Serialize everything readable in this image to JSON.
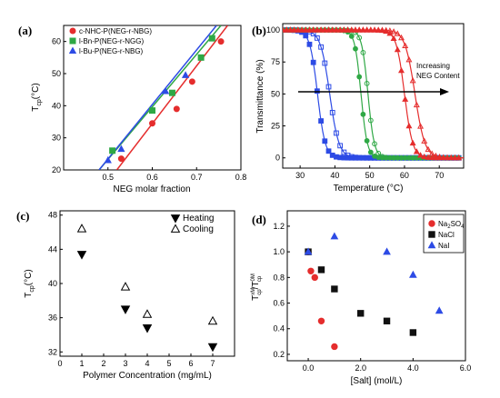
{
  "chart_data": [
    {
      "id": "a",
      "panel_label": "(a)",
      "type": "scatter",
      "xlabel": "NEG molar fraction",
      "ylabel": "T",
      "ylabel_sub": "cp",
      "ylabel_unit": "(°C)",
      "xlim": [
        0.4,
        0.8
      ],
      "ylim": [
        20,
        65
      ],
      "xticks": [
        "0.5",
        "0.6",
        "0.7",
        "0.8"
      ],
      "xtick_values": [
        0.5,
        0.6,
        0.7,
        0.8
      ],
      "yticks": [
        "20",
        "30",
        "40",
        "50",
        "60"
      ],
      "ytick_values": [
        20,
        30,
        40,
        50,
        60
      ],
      "legend_position": "top-left",
      "series": [
        {
          "name": "c-NHC-P(NEG-r-NBG)",
          "color": "#e52d2d",
          "marker": "circle",
          "x": [
            0.53,
            0.6,
            0.655,
            0.69,
            0.755
          ],
          "y": [
            23.5,
            34.5,
            39,
            47.5,
            60
          ],
          "fit": [
            [
              0.52,
              20
            ],
            [
              0.77,
              65
            ]
          ]
        },
        {
          "name": "l-Bn-P(NEG-r-NGG)",
          "color": "#2fa845",
          "marker": "square",
          "x": [
            0.51,
            0.6,
            0.645,
            0.71,
            0.735
          ],
          "y": [
            26,
            38.5,
            44,
            55,
            61
          ],
          "fit": [
            [
              0.48,
              20
            ],
            [
              0.755,
              65
            ]
          ]
        },
        {
          "name": "l-Bu-P(NEG-r-NBG)",
          "color": "#2d4be5",
          "marker": "triangle",
          "x": [
            0.5,
            0.53,
            0.63,
            0.675
          ],
          "y": [
            23,
            26.5,
            44.5,
            49.5
          ],
          "fit": [
            [
              0.48,
              20
            ],
            [
              0.745,
              65
            ]
          ]
        }
      ]
    },
    {
      "id": "b",
      "panel_label": "(b)",
      "type": "line",
      "xlabel": "Temperature (",
      "xlabel_unit": "°C)",
      "ylabel": "Transmittance (%)",
      "xlim": [
        25,
        77
      ],
      "ylim": [
        -8,
        105
      ],
      "xticks": [
        "30",
        "40",
        "50",
        "60",
        "70"
      ],
      "xtick_values": [
        30,
        40,
        50,
        60,
        70
      ],
      "yticks": [
        "0",
        "25",
        "50",
        "75",
        "100"
      ],
      "ytick_values": [
        0,
        25,
        50,
        75,
        100
      ],
      "annotation": [
        "Increasing",
        "NEG Content"
      ],
      "series": [
        {
          "color": "#2d4be5",
          "marker": "square",
          "filled": true,
          "mid": 35,
          "slope": 0.9
        },
        {
          "color": "#2d4be5",
          "marker": "square",
          "filled": false,
          "mid": 38.5,
          "slope": 0.75
        },
        {
          "color": "#2fa845",
          "marker": "circle",
          "filled": true,
          "mid": 47.5,
          "slope": 1.1
        },
        {
          "color": "#2fa845",
          "marker": "circle",
          "filled": false,
          "mid": 49.5,
          "slope": 1.1
        },
        {
          "color": "#e52d2d",
          "marker": "triangle",
          "filled": true,
          "mid": 60,
          "slope": 0.85
        },
        {
          "color": "#e52d2d",
          "marker": "triangle",
          "filled": false,
          "mid": 63,
          "slope": 0.7
        }
      ]
    },
    {
      "id": "c",
      "panel_label": "(c)",
      "type": "scatter",
      "xlabel": "Polymer Concentration (mg/mL)",
      "ylabel": "T",
      "ylabel_sub": "cp",
      "ylabel_unit": "(°C)",
      "xlim": [
        0,
        8
      ],
      "ylim": [
        31.5,
        48.5
      ],
      "xticks": [
        "0",
        "1",
        "2",
        "3",
        "4",
        "5",
        "6",
        "7"
      ],
      "xtick_values": [
        0,
        1,
        2,
        3,
        4,
        5,
        6,
        7
      ],
      "yticks": [
        "32",
        "36",
        "40",
        "44",
        "48"
      ],
      "ytick_values": [
        32,
        36,
        40,
        44,
        48
      ],
      "legend_position": "top-right",
      "series": [
        {
          "name": "Heating",
          "marker": "triangle-down",
          "filled": true,
          "x": [
            1,
            3,
            4,
            7
          ],
          "y": [
            43.4,
            37.0,
            34.8,
            32.6
          ]
        },
        {
          "name": "Cooling",
          "marker": "triangle",
          "filled": false,
          "x": [
            1,
            3,
            4,
            7
          ],
          "y": [
            46.4,
            39.6,
            36.4,
            35.6
          ]
        }
      ]
    },
    {
      "id": "d",
      "panel_label": "(d)",
      "type": "scatter",
      "xlabel": "[Salt] (mol/L)",
      "ylabel": "T",
      "ylabel_unit": "/T",
      "ylabel_sup1": "xM",
      "ylabel_sub1": "cp",
      "ylabel_sup2": "0M",
      "ylabel_sub2": "cp",
      "xlim": [
        -0.8,
        6
      ],
      "ylim": [
        0.15,
        1.32
      ],
      "xticks": [
        "0.0",
        "2.0",
        "4.0",
        "6.0"
      ],
      "xtick_values": [
        0,
        2,
        4,
        6
      ],
      "yticks": [
        "0.2",
        "0.4",
        "0.6",
        "0.8",
        "1.0",
        "1.2"
      ],
      "ytick_values": [
        0.2,
        0.4,
        0.6,
        0.8,
        1.0,
        1.2
      ],
      "legend_position": "top-right",
      "series": [
        {
          "name": "Na",
          "name_sub": "2",
          "name_suffix": "SO",
          "name_sub2": "4",
          "color": "#e52d2d",
          "marker": "circle",
          "x": [
            0,
            0.1,
            0.25,
            0.5,
            1.0
          ],
          "y": [
            1.0,
            0.85,
            0.8,
            0.46,
            0.26
          ]
        },
        {
          "name": "NaCl",
          "color": "#111111",
          "marker": "square",
          "x": [
            0,
            0.5,
            1.0,
            2.0,
            3.0,
            4.0
          ],
          "y": [
            1.0,
            0.86,
            0.71,
            0.52,
            0.46,
            0.37
          ]
        },
        {
          "name": "NaI",
          "color": "#2d4be5",
          "marker": "triangle",
          "x": [
            0,
            1.0,
            3.0,
            4.0,
            5.0
          ],
          "y": [
            1.0,
            1.12,
            1.0,
            0.82,
            0.54
          ]
        }
      ]
    }
  ]
}
